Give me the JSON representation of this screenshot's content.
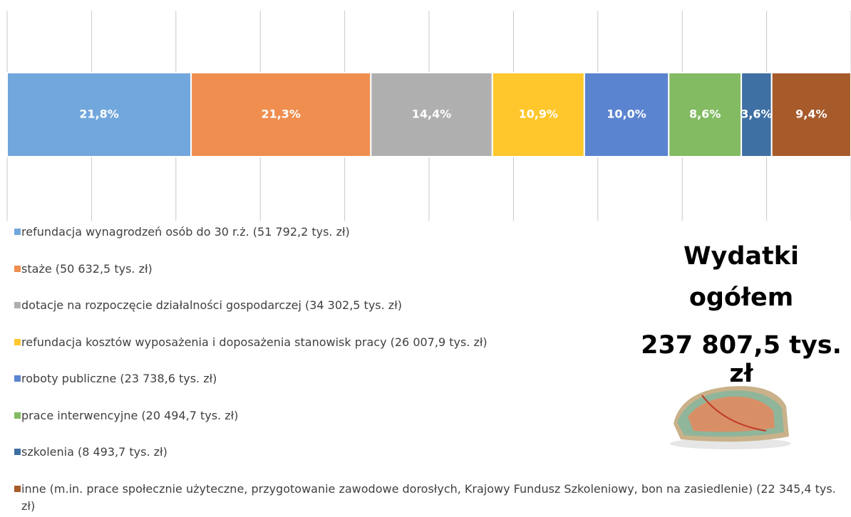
{
  "chart_data": {
    "type": "stacked-bar",
    "orientation": "horizontal",
    "xlim": [
      0,
      100
    ],
    "xticks": [
      0,
      10,
      20,
      30,
      40,
      50,
      60,
      70,
      80,
      90,
      100
    ],
    "grid": true,
    "series": [
      {
        "name": "refundacja wynagrodzeń osób do 30 r.ż. (51 792,2 tys. zł)",
        "color": "#71a7dc",
        "values": [
          21.8
        ],
        "value_labels": [
          "21,8%"
        ]
      },
      {
        "name": "staże (50 632,5 tys. zł)",
        "color": "#ef8e4f",
        "values": [
          21.3
        ],
        "value_labels": [
          "21,3%"
        ]
      },
      {
        "name": "dotacje na rozpoczęcie działalności gospodarczej (34 302,5 tys. zł)",
        "color": "#afafaf",
        "values": [
          14.4
        ],
        "value_labels": [
          "14,4%"
        ]
      },
      {
        "name": "refundacja kosztów wyposażenia i doposażenia stanowisk pracy (26 007,9 tys. zł)",
        "color": "#ffc72c",
        "values": [
          10.9
        ],
        "value_labels": [
          "10,9%"
        ]
      },
      {
        "name": "roboty publiczne (23 738,6 tys. zł)",
        "color": "#5b84d0",
        "values": [
          10.0
        ],
        "value_labels": [
          "10,0%"
        ]
      },
      {
        "name": "prace interwencyjne (20 494,7 tys. zł)",
        "color": "#83bb63",
        "values": [
          8.6
        ],
        "value_labels": [
          "8,6%"
        ]
      },
      {
        "name": "szkolenia (8 493,7 tys. zł)",
        "color": "#3f70a3",
        "values": [
          3.6
        ],
        "value_labels": [
          "3,6%"
        ]
      },
      {
        "name": "inne (m.in. prace społecznie użyteczne, przygotowanie zawodowe dorosłych, Krajowy Fundusz Szkoleniowy, bon na zasiedlenie) (22 345,4 tys. zł)",
        "color": "#a75b2b",
        "values": [
          9.4
        ],
        "value_labels": [
          "9,4%"
        ]
      }
    ],
    "annotations": [
      "Wydatki",
      "ogółem",
      "237 807,5 tys. zł"
    ]
  }
}
